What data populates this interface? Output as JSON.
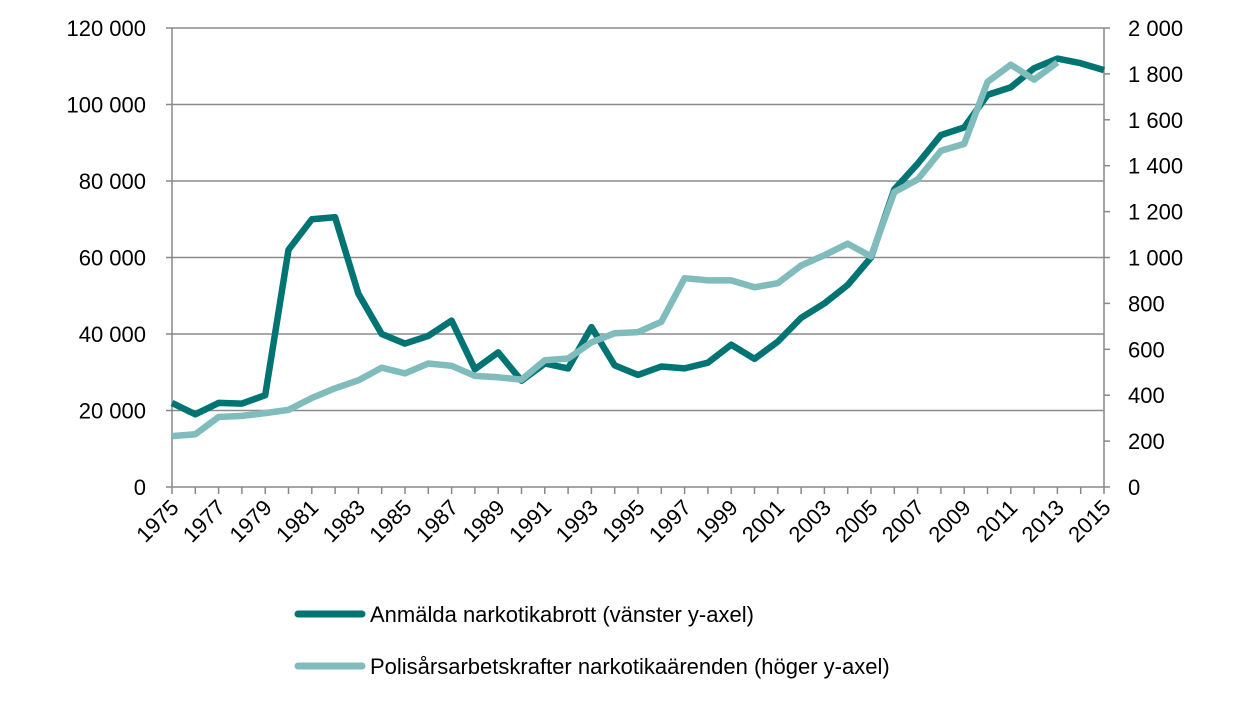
{
  "chart_data": {
    "type": "line",
    "title": "",
    "xlabel": "",
    "x": [
      1975,
      1976,
      1977,
      1978,
      1979,
      1980,
      1981,
      1982,
      1983,
      1984,
      1985,
      1986,
      1987,
      1988,
      1989,
      1990,
      1991,
      1992,
      1993,
      1994,
      1995,
      1996,
      1997,
      1998,
      1999,
      2000,
      2001,
      2002,
      2003,
      2004,
      2005,
      2006,
      2007,
      2008,
      2009,
      2010,
      2011,
      2012,
      2013,
      2014,
      2015
    ],
    "x_tick_labels": [
      "1975",
      "1977",
      "1979",
      "1981",
      "1983",
      "1985",
      "1987",
      "1989",
      "1991",
      "1993",
      "1995",
      "1997",
      "1999",
      "2001",
      "2003",
      "2005",
      "2007",
      "2009",
      "2011",
      "2013",
      "2015"
    ],
    "y_left": {
      "ylim": [
        0,
        120000
      ],
      "tick_labels": [
        "0",
        "20 000",
        "40 000",
        "60 000",
        "80 000",
        "100 000",
        "120 000"
      ]
    },
    "y_right": {
      "ylim": [
        0,
        2000
      ],
      "tick_labels": [
        "0",
        "200",
        "400",
        "600",
        "800",
        "1 000",
        "1 200",
        "1 400",
        "1 600",
        "1 800",
        "2 000"
      ]
    },
    "grid": "horizontal",
    "legend_position": "bottom",
    "series": [
      {
        "name": "Anmälda narkotikabrott (vänster y-axel)",
        "axis": "left",
        "color": "#007373",
        "values": [
          22000,
          19000,
          22000,
          21800,
          24000,
          62000,
          70000,
          70500,
          50500,
          40000,
          37500,
          39500,
          43500,
          30800,
          35200,
          27800,
          32300,
          31000,
          41800,
          31800,
          29300,
          31500,
          31000,
          32500,
          37200,
          33500,
          38000,
          44200,
          48000,
          52800,
          60000,
          77800,
          84500,
          92000,
          94000,
          102500,
          104500,
          109500,
          112000,
          110800,
          109000
        ]
      },
      {
        "name": "Polisårsarbetskrafter narkotikaärenden (höger y-axel)",
        "axis": "right",
        "color": "#80bcbc",
        "values": [
          222,
          230,
          305,
          310,
          322,
          336,
          388,
          430,
          465,
          520,
          495,
          538,
          528,
          484,
          478,
          468,
          552,
          560,
          630,
          670,
          675,
          720,
          910,
          900,
          900,
          870,
          888,
          965,
          1010,
          1060,
          1005,
          1285,
          1340,
          1465,
          1495,
          1765,
          1840,
          1775,
          1850,
          null,
          null
        ]
      }
    ]
  }
}
